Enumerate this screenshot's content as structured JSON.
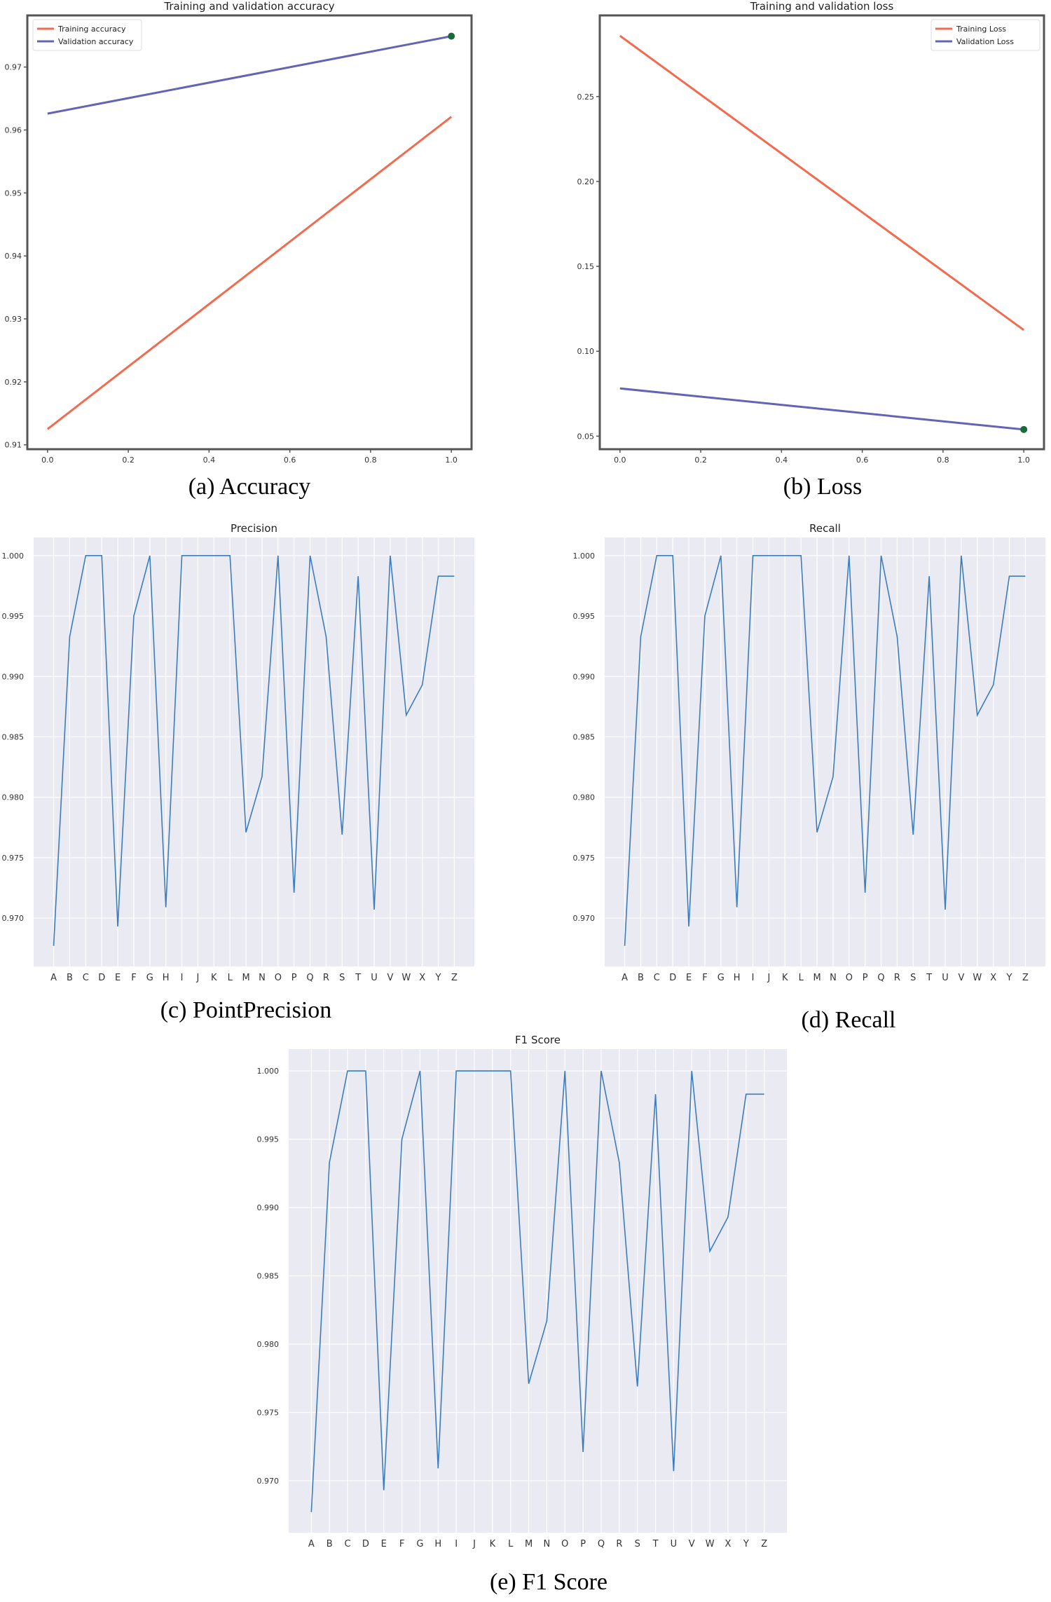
{
  "colors": {
    "training": "#f26b4f",
    "validation": "#6464b4",
    "best_marker": "#1a6b3a",
    "metric_line": "#3b7dbf",
    "seaborn_bg": "#eaeaf2",
    "grid": "#ffffff"
  },
  "chart_data": [
    {
      "id": "accuracy",
      "type": "line",
      "style": "classic",
      "title": "Training and validation accuracy",
      "caption": "(a) Accuracy",
      "x": [
        0.0,
        1.0
      ],
      "xlim": [
        -0.05,
        1.05
      ],
      "ylim": [
        0.9093,
        0.9782
      ],
      "xticks": [
        0.0,
        0.2,
        0.4,
        0.6,
        0.8,
        1.0
      ],
      "xtick_labels": [
        "0.0",
        "0.2",
        "0.4",
        "0.6",
        "0.8",
        "1.0"
      ],
      "yticks": [
        0.91,
        0.92,
        0.93,
        0.94,
        0.95,
        0.96,
        0.97
      ],
      "ytick_labels": [
        "0.91",
        "0.92",
        "0.93",
        "0.94",
        "0.95",
        "0.96",
        "0.97"
      ],
      "grid": false,
      "legend": "top-left",
      "series": [
        {
          "name": "Training accuracy",
          "color_key": "training",
          "values": [
            0.9125,
            0.9621
          ]
        },
        {
          "name": "Validation accuracy",
          "color_key": "validation",
          "values": [
            0.9626,
            0.9749
          ],
          "marker_last": true
        }
      ]
    },
    {
      "id": "loss",
      "type": "line",
      "style": "classic",
      "title": "Training and validation loss",
      "caption": "(b) Loss",
      "x": [
        0.0,
        1.0
      ],
      "xlim": [
        -0.05,
        1.05
      ],
      "ylim": [
        0.0423,
        0.2978
      ],
      "xticks": [
        0.0,
        0.2,
        0.4,
        0.6,
        0.8,
        1.0
      ],
      "xtick_labels": [
        "0.0",
        "0.2",
        "0.4",
        "0.6",
        "0.8",
        "1.0"
      ],
      "yticks": [
        0.05,
        0.1,
        0.15,
        0.2,
        0.25
      ],
      "ytick_labels": [
        "0.05",
        "0.10",
        "0.15",
        "0.20",
        "0.25"
      ],
      "grid": false,
      "legend": "top-right",
      "series": [
        {
          "name": "Training Loss",
          "color_key": "training",
          "values": [
            0.2858,
            0.1125
          ]
        },
        {
          "name": "Validation Loss",
          "color_key": "validation",
          "values": [
            0.0781,
            0.0539
          ],
          "marker_last": true
        }
      ]
    },
    {
      "id": "precision",
      "type": "line",
      "style": "seaborn",
      "title": "Precision",
      "caption": "(c) PointPrecision",
      "categories": [
        "A",
        "B",
        "C",
        "D",
        "E",
        "F",
        "G",
        "H",
        "I",
        "J",
        "K",
        "L",
        "M",
        "N",
        "O",
        "P",
        "Q",
        "R",
        "S",
        "T",
        "U",
        "V",
        "W",
        "X",
        "Y",
        "Z"
      ],
      "ylim": [
        0.966,
        1.0015
      ],
      "yticks": [
        0.97,
        0.975,
        0.98,
        0.985,
        0.99,
        0.995,
        1.0
      ],
      "ytick_labels": [
        "0.970",
        "0.975",
        "0.980",
        "0.985",
        "0.990",
        "0.995",
        "1.000"
      ],
      "grid": true,
      "series": [
        {
          "color_key": "metric_line",
          "values": [
            0.9677,
            0.9933,
            1.0,
            1.0,
            0.9693,
            0.995,
            1.0,
            0.9709,
            1.0,
            1.0,
            1.0,
            1.0,
            0.9771,
            0.9817,
            1.0,
            0.9721,
            1.0,
            0.9933,
            0.9769,
            0.9983,
            0.9707,
            1.0,
            0.9868,
            0.9893,
            0.9983,
            0.9983
          ]
        }
      ]
    },
    {
      "id": "recall",
      "type": "line",
      "style": "seaborn",
      "title": "Recall",
      "caption": "(d) Recall",
      "categories": [
        "A",
        "B",
        "C",
        "D",
        "E",
        "F",
        "G",
        "H",
        "I",
        "J",
        "K",
        "L",
        "M",
        "N",
        "O",
        "P",
        "Q",
        "R",
        "S",
        "T",
        "U",
        "V",
        "W",
        "X",
        "Y",
        "Z"
      ],
      "ylim": [
        0.966,
        1.0015
      ],
      "yticks": [
        0.97,
        0.975,
        0.98,
        0.985,
        0.99,
        0.995,
        1.0
      ],
      "ytick_labels": [
        "0.970",
        "0.975",
        "0.980",
        "0.985",
        "0.990",
        "0.995",
        "1.000"
      ],
      "grid": true,
      "series": [
        {
          "color_key": "metric_line",
          "values": [
            0.9677,
            0.9933,
            1.0,
            1.0,
            0.9693,
            0.995,
            1.0,
            0.9709,
            1.0,
            1.0,
            1.0,
            1.0,
            0.9771,
            0.9817,
            1.0,
            0.9721,
            1.0,
            0.9933,
            0.9769,
            0.9983,
            0.9707,
            1.0,
            0.9868,
            0.9893,
            0.9983,
            0.9983
          ]
        }
      ]
    },
    {
      "id": "f1",
      "type": "line",
      "style": "seaborn",
      "title": "F1 Score",
      "caption": "(e) F1 Score",
      "categories": [
        "A",
        "B",
        "C",
        "D",
        "E",
        "F",
        "G",
        "H",
        "I",
        "J",
        "K",
        "L",
        "M",
        "N",
        "O",
        "P",
        "Q",
        "R",
        "S",
        "T",
        "U",
        "V",
        "W",
        "X",
        "Y",
        "Z"
      ],
      "ylim": [
        0.9662,
        1.0016
      ],
      "yticks": [
        0.97,
        0.975,
        0.98,
        0.985,
        0.99,
        0.995,
        1.0
      ],
      "ytick_labels": [
        "0.970",
        "0.975",
        "0.980",
        "0.985",
        "0.990",
        "0.995",
        "1.000"
      ],
      "grid": true,
      "series": [
        {
          "color_key": "metric_line",
          "values": [
            0.9677,
            0.9933,
            1.0,
            1.0,
            0.9693,
            0.995,
            1.0,
            0.9709,
            1.0,
            1.0,
            1.0,
            1.0,
            0.9771,
            0.9817,
            1.0,
            0.9721,
            1.0,
            0.9933,
            0.9769,
            0.9983,
            0.9707,
            1.0,
            0.9868,
            0.9893,
            0.9983,
            0.9983
          ]
        }
      ]
    }
  ]
}
